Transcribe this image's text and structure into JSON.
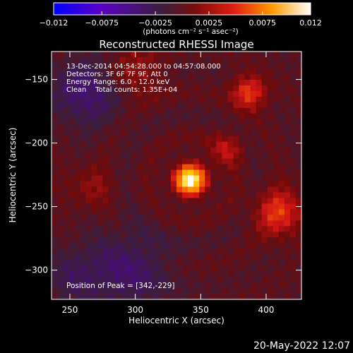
{
  "chart_data": {
    "type": "heatmap",
    "title": "Reconstructed RHESSI Image",
    "xlabel": "Heliocentric X (arcsec)",
    "ylabel": "Heliocentric Y (arcsec)",
    "xlim": [
      236,
      427
    ],
    "ylim": [
      -323,
      -128
    ],
    "xticks": [
      250,
      300,
      350,
      400
    ],
    "yticks": [
      -150,
      -200,
      -250,
      -300
    ],
    "colorbar": {
      "min": -0.012,
      "max": 0.012,
      "ticks": [
        "-0.012",
        "-0.0075",
        "-0.0025",
        "0.0025",
        "0.0075",
        "0.012"
      ],
      "tick_values": [
        -0.012,
        -0.0075,
        -0.0025,
        0.0025,
        0.0075,
        0.012
      ],
      "units": "(photons cm⁻² s⁻¹ asec⁻²)",
      "colormap": [
        "#0000ff",
        "#5000b4",
        "#3c1e3c",
        "#6e0a0a",
        "#d21414",
        "#ff7800",
        "#ffd200",
        "#ffffff"
      ]
    },
    "annotations": [
      "13-Dec-2014 04:54:28.000 to 04:57:08.000",
      "Detectors: 3F 6F 7F 9F, Att 0",
      "Energy Range: 6.0 - 12.0 keV",
      "Clean    Total counts: 1.35E+04"
    ],
    "peak_label": "Position of Peak = [342,-229]",
    "peak": {
      "x": 342,
      "y": -229,
      "value": 0.012
    },
    "sources": [
      {
        "x": 342,
        "y": -229,
        "value": 0.012,
        "sigma": 9
      },
      {
        "x": 387,
        "y": -160,
        "value": 0.0055,
        "sigma": 9
      },
      {
        "x": 410,
        "y": -255,
        "value": 0.005,
        "sigma": 13
      },
      {
        "x": 300,
        "y": -145,
        "value": 0.0025,
        "sigma": 14
      },
      {
        "x": 370,
        "y": -205,
        "value": 0.003,
        "sigma": 9
      },
      {
        "x": 265,
        "y": -235,
        "value": 0.002,
        "sigma": 12
      },
      {
        "x": 262,
        "y": -160,
        "value": -0.0035,
        "sigma": 18
      },
      {
        "x": 295,
        "y": -300,
        "value": -0.003,
        "sigma": 22
      },
      {
        "x": 252,
        "y": -305,
        "value": -0.002,
        "sigma": 16
      }
    ]
  },
  "footer": {
    "date": "20-May-2022 12:07"
  }
}
